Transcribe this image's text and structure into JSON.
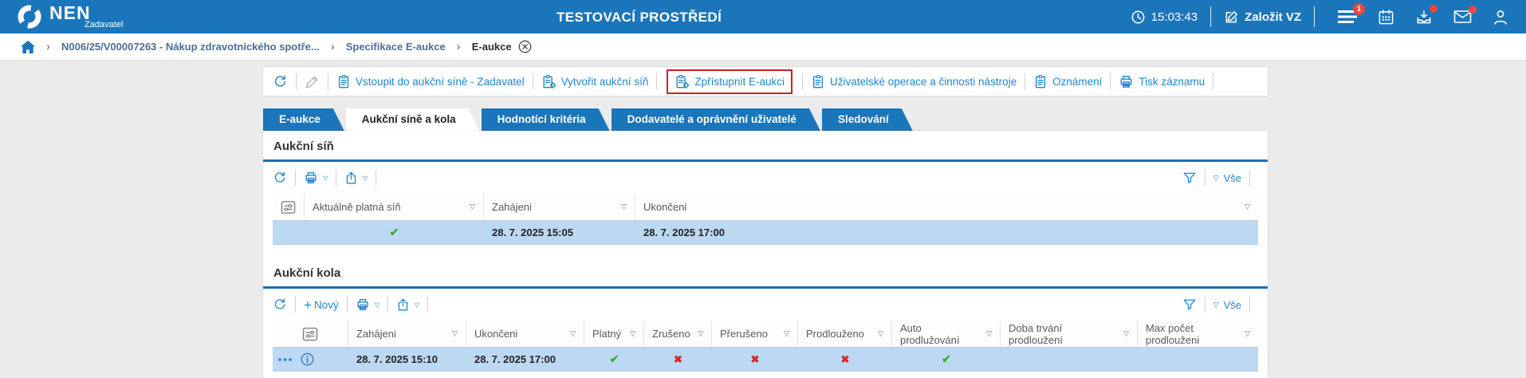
{
  "header": {
    "logo": "NEN",
    "logo_subtitle": "Zadavatel",
    "environment_title": "TESTOVACÍ PROSTŘEDÍ",
    "time": "15:03:43",
    "create_vz_label": "Založit VZ",
    "menu_badge_count": "1"
  },
  "breadcrumb": {
    "items": [
      "N006/25/V00007263 - Nákup zdravotnického spotře...",
      "Specifikace E-aukce",
      "E-aukce"
    ]
  },
  "record_toolbar": {
    "links": [
      "Vstoupit do aukční síně - Zadavatel",
      "Vytvořit aukční síň",
      "Zpřístupnit E-aukci",
      "Uživatelské operace a činnosti nástroje",
      "Oznámení",
      "Tisk záznamu"
    ]
  },
  "tabs": {
    "items": [
      "E-aukce",
      "Aukční síně a kola",
      "Hodnotící kritéria",
      "Dodavatelé a oprávnění uživatelé",
      "Sledování"
    ],
    "active": "Aukční síně a kola"
  },
  "sections": {
    "auction_hall": {
      "title": "Aukční síň",
      "view_all_label": "Vše",
      "table": {
        "columns": [
          "Aktuálně platná síň",
          "Zahájeni",
          "Ukončeni"
        ],
        "rows": [
          [
            true,
            "28. 7. 2025 15:05",
            "28. 7. 2025 17:00"
          ]
        ]
      }
    },
    "auction_rounds": {
      "title": "Aukční kola",
      "new_button_label": "Nový",
      "view_all_label": "Vše",
      "table": {
        "columns": [
          "Zahájeni",
          "Ukončeni",
          "Platný",
          "Zrušeno",
          "Přerušeno",
          "Prodlouženo",
          "Auto prodlužování",
          "Doba trvání prodloužení",
          "Max počet prodlouženi"
        ],
        "rows": [
          [
            "28. 7. 2025 15:10",
            "28. 7. 2025 17:00",
            true,
            false,
            false,
            false,
            true,
            "",
            ""
          ]
        ]
      }
    }
  },
  "icon_glyphs": {
    "sort": "▽",
    "dropdown": "▽",
    "breadcrumb_chevron": "›",
    "check": "✔",
    "cross": "✖"
  },
  "colors": {
    "header_blue": "#1b75bb",
    "link_blue": "#1e87cd",
    "row_highlight": "#bdd8f2",
    "success_green": "#3aaa35",
    "danger_red": "#d22b2b",
    "badge_red": "#e8483f",
    "highlight_box_red": "#cf1f1f"
  }
}
